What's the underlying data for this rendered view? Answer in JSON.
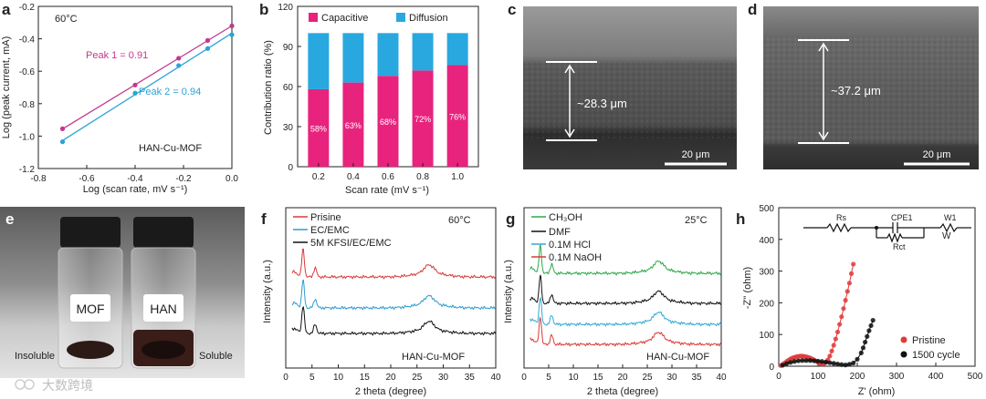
{
  "chart_data": [
    {
      "panel": "a",
      "type": "scatter",
      "title": "60°C",
      "annotation": "HAN-Cu-MOF",
      "xlabel": "Log (scan rate, mV s⁻¹)",
      "ylabel": "Log (peak current, mA)",
      "xlim": [
        -0.8,
        0.0
      ],
      "ylim": [
        -1.2,
        -0.2
      ],
      "xticks": [
        "-0.8",
        "-0.6",
        "-0.4",
        "-0.2",
        "0.0"
      ],
      "yticks": [
        "-0.2",
        "-0.4",
        "-0.6",
        "-0.8",
        "-1.0",
        "-1.2"
      ],
      "series": [
        {
          "name": "Peak 1 = 0.91",
          "color": "#c2398c",
          "x": [
            -0.7,
            -0.4,
            -0.22,
            -0.1,
            0.0
          ],
          "y": [
            -0.955,
            -0.685,
            -0.52,
            -0.41,
            -0.32
          ]
        },
        {
          "name": "Peak 2 = 0.94",
          "color": "#2aa3d6",
          "x": [
            -0.7,
            -0.4,
            -0.22,
            -0.1,
            0.0
          ],
          "y": [
            -1.035,
            -0.735,
            -0.565,
            -0.46,
            -0.375
          ]
        }
      ]
    },
    {
      "panel": "b",
      "type": "bar",
      "categories": [
        "0.2",
        "0.4",
        "0.6",
        "0.8",
        "1.0"
      ],
      "xlabel": "Scan rate (mV s⁻¹)",
      "ylabel": "Contribution ratio (%)",
      "ylim": [
        0,
        120
      ],
      "yticks": [
        "0",
        "30",
        "60",
        "90",
        "120"
      ],
      "series": [
        {
          "name": "Capacitive",
          "color": "#e8237d",
          "values": [
            58,
            63,
            68,
            72,
            76
          ],
          "labels": [
            "58%",
            "63%",
            "68%",
            "72%",
            "76%"
          ]
        },
        {
          "name": "Diffusion",
          "color": "#29a8e0",
          "values": [
            42,
            37,
            32,
            28,
            24
          ]
        }
      ]
    },
    {
      "panel": "f",
      "type": "line",
      "title": "60°C",
      "annotation": "HAN-Cu-MOF",
      "xlabel": "2 theta (degree)",
      "ylabel": "Intensity (a.u.)",
      "xlim": [
        0,
        40
      ],
      "xticks": [
        "0",
        "5",
        "10",
        "15",
        "20",
        "25",
        "30",
        "35",
        "40"
      ],
      "series": [
        {
          "name": "Prisine",
          "color": "#d93a3a"
        },
        {
          "name": "EC/EMC",
          "color": "#2f9bd1"
        },
        {
          "name": "5M KFSI/EC/EMC",
          "color": "#111111"
        }
      ]
    },
    {
      "panel": "g",
      "type": "line",
      "title": "25°C",
      "annotation": "HAN-Cu-MOF",
      "xlabel": "2 theta (degree)",
      "ylabel": "Intensity (a.u.)",
      "xlim": [
        0,
        40
      ],
      "xticks": [
        "0",
        "5",
        "10",
        "15",
        "20",
        "25",
        "30",
        "35",
        "40"
      ],
      "series": [
        {
          "name": "CH₃OH",
          "color": "#2ea84a"
        },
        {
          "name": "DMF",
          "color": "#111111"
        },
        {
          "name": "0.1M HCl",
          "color": "#2fa9d6"
        },
        {
          "name": "0.1M NaOH",
          "color": "#d93a3a"
        }
      ]
    },
    {
      "panel": "h",
      "type": "scatter",
      "xlabel": "Z' (ohm)",
      "ylabel": "-Z'' (ohm)",
      "xlim": [
        0,
        500
      ],
      "ylim": [
        0,
        500
      ],
      "xticks": [
        "0",
        "100",
        "200",
        "300",
        "400",
        "500"
      ],
      "yticks": [
        "0",
        "100",
        "200",
        "300",
        "400",
        "500"
      ],
      "circuit": {
        "rs": "Rs",
        "cpe": "CPE1",
        "rct": "Rct",
        "w": "W1",
        "wsym": "W"
      },
      "series": [
        {
          "name": "Pristine",
          "color": "#e03a3a",
          "x": [
            5,
            10,
            15,
            20,
            25,
            30,
            35,
            40,
            45,
            50,
            55,
            60,
            65,
            70,
            75,
            80,
            85,
            90,
            95,
            100,
            105,
            110,
            115,
            120,
            125,
            130,
            135,
            140,
            145,
            150,
            155,
            160,
            165,
            170,
            175,
            180,
            185,
            190
          ],
          "y": [
            2,
            6,
            10,
            15,
            19,
            23,
            26,
            28,
            30,
            31,
            32,
            32,
            31,
            30,
            28,
            26,
            23,
            20,
            16,
            12,
            9,
            7,
            8,
            12,
            20,
            32,
            48,
            66,
            86,
            108,
            132,
            156,
            182,
            208,
            236,
            262,
            292,
            322
          ]
        },
        {
          "name": "1500 cycle",
          "color": "#111111",
          "x": [
            10,
            20,
            30,
            40,
            50,
            60,
            70,
            80,
            90,
            100,
            110,
            120,
            130,
            140,
            150,
            160,
            170,
            180,
            190,
            200,
            210,
            215,
            220,
            225,
            230,
            235,
            240
          ],
          "y": [
            3,
            8,
            12,
            15,
            17,
            18,
            18,
            18,
            17,
            16,
            15,
            13,
            11,
            9,
            7,
            5,
            4,
            6,
            10,
            22,
            42,
            58,
            76,
            94,
            112,
            128,
            145
          ]
        }
      ]
    }
  ],
  "panel_labels": {
    "a": "a",
    "b": "b",
    "c": "c",
    "d": "d",
    "e": "e",
    "f": "f",
    "g": "g",
    "h": "h"
  },
  "sem_c": {
    "thickness": "~28.3 μm",
    "scale": "20 μm"
  },
  "sem_d": {
    "thickness": "~37.2 μm",
    "scale": "20 μm"
  },
  "photo_e": {
    "left_label": "MOF",
    "right_label": "HAN",
    "insoluble": "Insoluble",
    "soluble": "Soluble"
  },
  "watermark": "大数跨境",
  "colors": {
    "bar_cap": "#e8237d",
    "bar_dif": "#29a8e0",
    "peak1": "#c2398c",
    "peak2": "#2aa3d6"
  }
}
